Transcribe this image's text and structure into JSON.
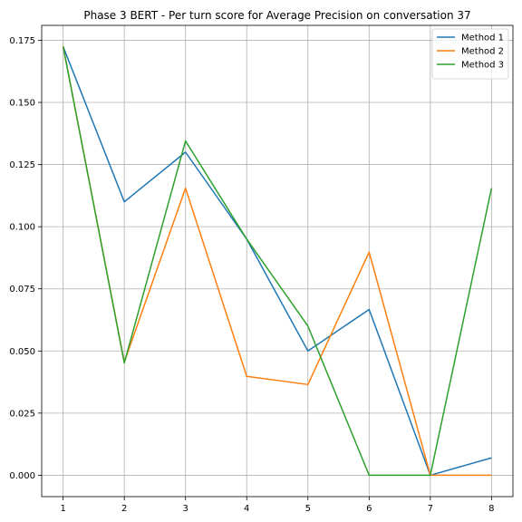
{
  "chart_data": {
    "type": "line",
    "title": "Phase 3 BERT - Per turn score for Average Precision on conversation 37",
    "xlabel": "",
    "ylabel": "",
    "x": [
      1,
      2,
      3,
      4,
      5,
      6,
      7,
      8
    ],
    "xlim": [
      0.65,
      8.35
    ],
    "ylim": [
      -0.0086,
      0.181
    ],
    "xticks": [
      1,
      2,
      3,
      4,
      5,
      6,
      7,
      8
    ],
    "yticks": [
      0.0,
      0.025,
      0.05,
      0.075,
      0.1,
      0.125,
      0.15,
      0.175
    ],
    "ytick_labels": [
      "0.000",
      "0.025",
      "0.050",
      "0.075",
      "0.100",
      "0.125",
      "0.150",
      "0.175"
    ],
    "grid": true,
    "legend_position": "top-right",
    "series": [
      {
        "name": "Method 1",
        "color": "#1f77b4",
        "values": [
          0.1725,
          0.11,
          0.13,
          0.095,
          0.05,
          0.0667,
          0.0,
          0.007
        ]
      },
      {
        "name": "Method 2",
        "color": "#ff7f0e",
        "values": [
          0.1725,
          0.0455,
          0.1155,
          0.0398,
          0.0365,
          0.0898,
          0.0,
          0.0
        ]
      },
      {
        "name": "Method 3",
        "color": "#2ca02c",
        "values": [
          0.1725,
          0.0452,
          0.1345,
          0.095,
          0.06,
          0.0,
          0.0,
          0.1155
        ]
      }
    ]
  }
}
